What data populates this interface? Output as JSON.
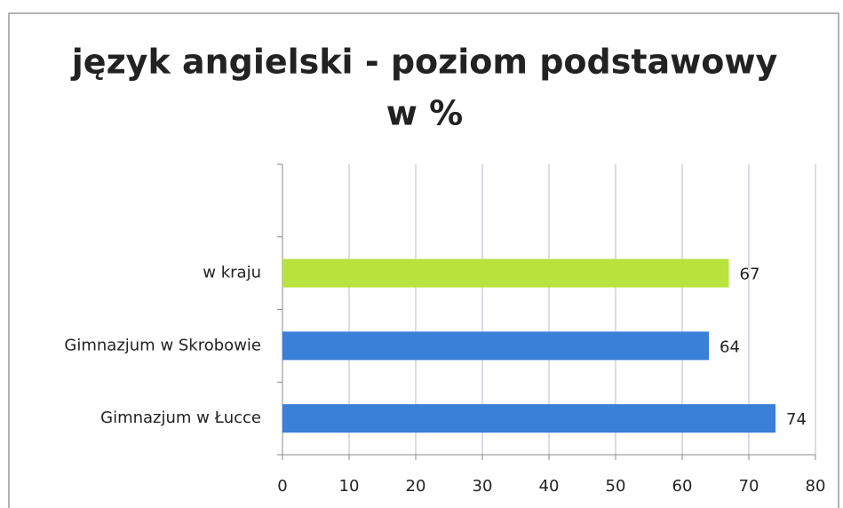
{
  "chart_data": {
    "type": "bar",
    "orientation": "horizontal",
    "title": "język angielski - poziom podstawowy",
    "subtitle": "w %",
    "categories": [
      "Gimnazjum w Łucce",
      "Gimnazjum w Skrobowie",
      "w kraju"
    ],
    "values": [
      74,
      64,
      67
    ],
    "colors": [
      "#3a7fd8",
      "#3a7fd8",
      "#b8e23c"
    ],
    "xlim": [
      0,
      80
    ],
    "xticks": [
      0,
      10,
      20,
      30,
      40,
      50,
      60,
      70,
      80
    ],
    "grid": true
  }
}
